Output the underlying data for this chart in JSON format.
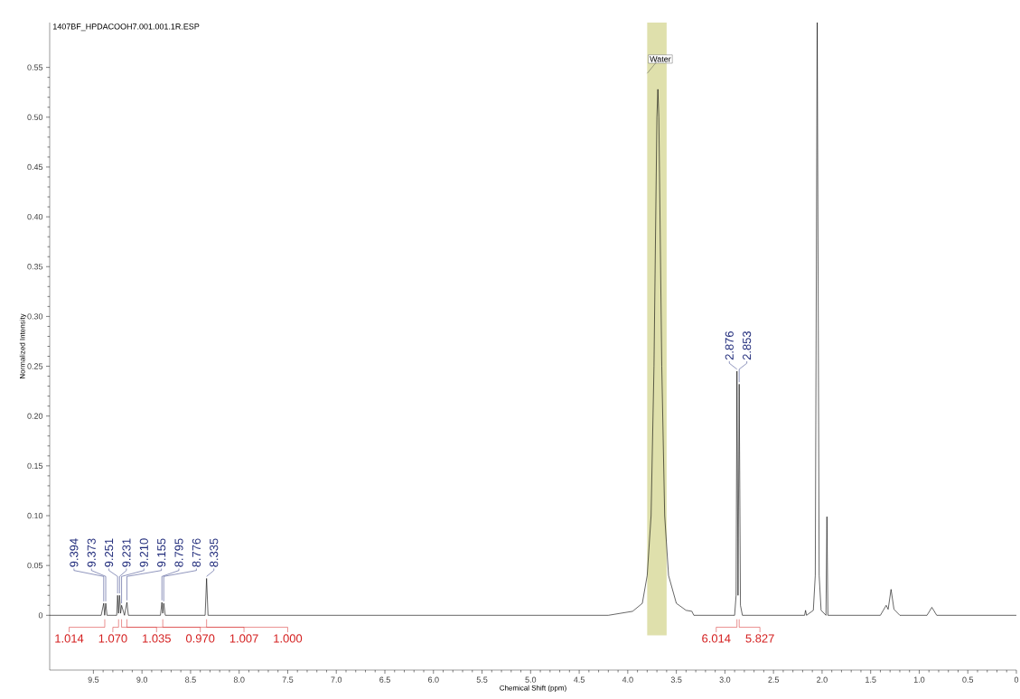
{
  "chart_data": {
    "type": "line",
    "subtitle": "1407BF_HPDACOOH7.001.001.1R.ESP",
    "xlabel": "Chemical Shift (ppm)",
    "ylabel": "Normalized Intensity",
    "xlim": [
      9.95,
      0
    ],
    "ylim": [
      -0.055,
      0.595
    ],
    "xticks": [
      0,
      0.5,
      {
        "value": 1,
        "label": "1.0"
      },
      1.5,
      {
        "value": 2,
        "label": "2.0"
      },
      2.5,
      {
        "value": 3,
        "label": "3.0"
      },
      3.5,
      {
        "value": 4,
        "label": "4.0"
      },
      4.5,
      {
        "value": 5,
        "label": "5.0"
      },
      5.5,
      {
        "value": 6,
        "label": "6.0"
      },
      6.5,
      {
        "value": 7,
        "label": "7.0"
      },
      7.5,
      {
        "value": 8,
        "label": "8.0"
      },
      8.5,
      {
        "value": 9,
        "label": "9.0"
      },
      9.5
    ],
    "yticks": [
      0,
      0.05,
      {
        "value": 0.1,
        "label": "0.10"
      },
      0.15,
      {
        "value": 0.2,
        "label": "0.20"
      },
      0.25,
      {
        "value": 0.3,
        "label": "0.30"
      },
      0.35,
      {
        "value": 0.4,
        "label": "0.40"
      },
      0.45,
      {
        "value": 0.5,
        "label": "0.50"
      },
      0.55
    ],
    "marker": "none",
    "line_style": "solid",
    "series": [
      {
        "color": "#000000",
        "x": [
          9.95,
          9.42,
          9.394,
          9.384,
          9.373,
          9.36,
          9.26,
          9.251,
          9.241,
          9.231,
          9.22,
          9.21,
          9.18,
          9.155,
          9.14,
          8.81,
          8.795,
          8.786,
          8.776,
          8.76,
          8.35,
          8.335,
          8.32,
          4.2,
          3.95,
          3.85,
          3.8,
          3.76,
          3.73,
          3.7,
          3.69,
          3.68,
          3.65,
          3.62,
          3.58,
          3.5,
          3.4,
          3.34,
          3.32,
          2.9,
          2.885,
          2.876,
          2.865,
          2.853,
          2.84,
          2.82,
          2.18,
          2.17,
          2.16,
          2.09,
          2.07,
          2.05,
          2.03,
          2.01,
          1.96,
          1.95,
          1.94,
          1.4,
          1.34,
          1.32,
          1.29,
          1.26,
          1.2,
          0.92,
          0.87,
          0.82,
          0
        ],
        "values": [
          0,
          0,
          0.012,
          0,
          0.012,
          0,
          0,
          0.02,
          0.002,
          0.02,
          0.002,
          0.01,
          0,
          0.013,
          0,
          0,
          0.013,
          0.002,
          0.012,
          0,
          0,
          0.037,
          0,
          0,
          0.004,
          0.012,
          0.04,
          0.1,
          0.25,
          0.5,
          0.528,
          0.5,
          0.25,
          0.1,
          0.04,
          0.012,
          0.005,
          0.004,
          0,
          0,
          0.02,
          0.245,
          0.02,
          0.232,
          0.01,
          0,
          0,
          0.005,
          0,
          0.005,
          0.04,
          0.595,
          0.04,
          0.005,
          0,
          0.099,
          0,
          0,
          0.01,
          0.006,
          0.026,
          0.006,
          0,
          0,
          0.008,
          0,
          0
        ]
      }
    ],
    "bands": [
      {
        "axis": "x",
        "from": 3.8,
        "to": 3.6,
        "label": "Water",
        "color": "#dfe0ac"
      }
    ],
    "annotations": [
      {
        "text": "9.394",
        "x": 9.394,
        "y": 0.012
      },
      {
        "text": "9.373",
        "x": 9.373,
        "y": 0.012
      },
      {
        "text": "9.251",
        "x": 9.251,
        "y": 0.02
      },
      {
        "text": "9.231",
        "x": 9.231,
        "y": 0.02
      },
      {
        "text": "9.210",
        "x": 9.21,
        "y": 0.01
      },
      {
        "text": "9.155",
        "x": 9.155,
        "y": 0.013
      },
      {
        "text": "8.795",
        "x": 8.795,
        "y": 0.013
      },
      {
        "text": "8.776",
        "x": 8.776,
        "y": 0.012
      },
      {
        "text": "8.335",
        "x": 8.335,
        "y": 0.037
      },
      {
        "text": "2.876",
        "x": 2.876,
        "y": 0.245
      },
      {
        "text": "2.853",
        "x": 2.853,
        "y": 0.232
      },
      {
        "text": "1.014",
        "x": 9.383,
        "y": 0
      },
      {
        "text": "1.070",
        "x": 9.241,
        "y": 0
      },
      {
        "text": "1.035",
        "x": 9.21,
        "y": 0
      },
      {
        "text": "0.970",
        "x": 9.155,
        "y": 0
      },
      {
        "text": "1.007",
        "x": 8.786,
        "y": 0
      },
      {
        "text": "1.000",
        "x": 8.335,
        "y": 0
      },
      {
        "text": "6.014",
        "x": 2.876,
        "y": 0
      },
      {
        "text": "5.827",
        "x": 2.853,
        "y": 0
      }
    ]
  }
}
